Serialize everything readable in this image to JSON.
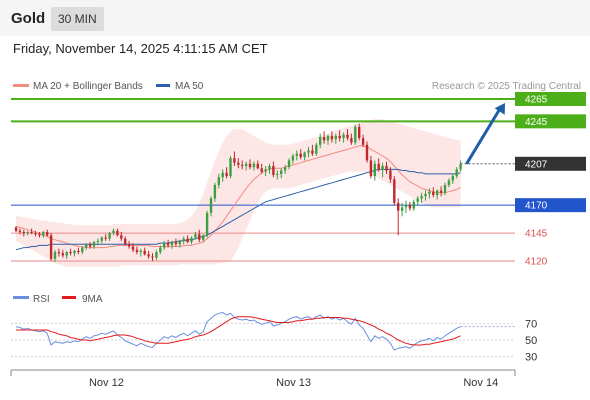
{
  "header": {
    "title": "Gold",
    "timeframe": "30 MIN"
  },
  "datetime": "Friday, November 14, 2025 4:11:15 AM CET",
  "legend": {
    "price": [
      {
        "label": "MA 20 + Bollinger Bands",
        "color": "#f28b82"
      },
      {
        "label": "MA 50",
        "color": "#2e5fa8"
      }
    ],
    "rsi": [
      {
        "label": "RSI",
        "color": "#6a8fe0"
      },
      {
        "label": "9MA",
        "color": "#e31a1c"
      }
    ]
  },
  "credit": "Research © 2025 Trading Central",
  "colors": {
    "up": "#3aa040",
    "down": "#c0282d",
    "resistance": "#4caf1a",
    "pivot": "#2255cc",
    "support": "#d9534f",
    "current": "#333333",
    "arrow": "#1f5fa8"
  },
  "chart_data": {
    "type": "candlestick",
    "instrument": "Gold",
    "interval": "30 MIN",
    "ylim": [
      4103,
      4282
    ],
    "x_tick_labels": [
      {
        "index": 16,
        "label": "Nov 12"
      },
      {
        "index": 64,
        "label": "Nov 13"
      },
      {
        "index": 112,
        "label": "Nov 14"
      }
    ],
    "candles": [
      [
        4150,
        4151,
        4146,
        4147
      ],
      [
        4147,
        4149,
        4144,
        4146
      ],
      [
        4146,
        4148,
        4142,
        4145
      ],
      [
        4145,
        4147,
        4143,
        4146
      ],
      [
        4146,
        4149,
        4144,
        4145
      ],
      [
        4145,
        4147,
        4142,
        4144
      ],
      [
        4144,
        4146,
        4141,
        4143
      ],
      [
        4143,
        4147,
        4141,
        4146
      ],
      [
        4146,
        4148,
        4142,
        4143
      ],
      [
        4143,
        4145,
        4120,
        4122
      ],
      [
        4122,
        4130,
        4119,
        4128
      ],
      [
        4128,
        4131,
        4124,
        4127
      ],
      [
        4127,
        4130,
        4123,
        4125
      ],
      [
        4125,
        4129,
        4122,
        4128
      ],
      [
        4128,
        4131,
        4125,
        4127
      ],
      [
        4127,
        4130,
        4124,
        4129
      ],
      [
        4129,
        4132,
        4126,
        4128
      ],
      [
        4128,
        4133,
        4126,
        4132
      ],
      [
        4132,
        4136,
        4130,
        4135
      ],
      [
        4135,
        4137,
        4131,
        4133
      ],
      [
        4133,
        4138,
        4131,
        4137
      ],
      [
        4137,
        4140,
        4134,
        4138
      ],
      [
        4138,
        4142,
        4136,
        4141
      ],
      [
        4141,
        4144,
        4138,
        4140
      ],
      [
        4140,
        4146,
        4138,
        4145
      ],
      [
        4145,
        4149,
        4143,
        4147
      ],
      [
        4147,
        4149,
        4142,
        4143
      ],
      [
        4143,
        4146,
        4138,
        4140
      ],
      [
        4140,
        4142,
        4134,
        4135
      ],
      [
        4135,
        4138,
        4131,
        4133
      ],
      [
        4133,
        4136,
        4128,
        4130
      ],
      [
        4130,
        4133,
        4126,
        4128
      ],
      [
        4128,
        4131,
        4124,
        4129
      ],
      [
        4129,
        4132,
        4125,
        4126
      ],
      [
        4126,
        4129,
        4122,
        4124
      ],
      [
        4124,
        4127,
        4120,
        4123
      ],
      [
        4123,
        4130,
        4121,
        4128
      ],
      [
        4128,
        4134,
        4126,
        4132
      ],
      [
        4132,
        4138,
        4130,
        4136
      ],
      [
        4136,
        4139,
        4132,
        4134
      ],
      [
        4134,
        4138,
        4131,
        4137
      ],
      [
        4137,
        4140,
        4133,
        4135
      ],
      [
        4135,
        4139,
        4132,
        4138
      ],
      [
        4138,
        4142,
        4135,
        4140
      ],
      [
        4140,
        4143,
        4136,
        4137
      ],
      [
        4137,
        4142,
        4135,
        4141
      ],
      [
        4141,
        4146,
        4139,
        4144
      ],
      [
        4144,
        4148,
        4137,
        4139
      ],
      [
        4139,
        4144,
        4137,
        4143
      ],
      [
        4143,
        4165,
        4141,
        4163
      ],
      [
        4163,
        4178,
        4160,
        4176
      ],
      [
        4176,
        4190,
        4173,
        4188
      ],
      [
        4188,
        4198,
        4185,
        4195
      ],
      [
        4195,
        4202,
        4191,
        4199
      ],
      [
        4199,
        4204,
        4194,
        4196
      ],
      [
        4196,
        4214,
        4194,
        4212
      ],
      [
        4212,
        4218,
        4205,
        4208
      ],
      [
        4208,
        4212,
        4203,
        4206
      ],
      [
        4206,
        4210,
        4202,
        4205
      ],
      [
        4205,
        4209,
        4201,
        4207
      ],
      [
        4207,
        4211,
        4202,
        4204
      ],
      [
        4204,
        4209,
        4201,
        4207
      ],
      [
        4207,
        4210,
        4202,
        4203
      ],
      [
        4203,
        4207,
        4198,
        4200
      ],
      [
        4200,
        4205,
        4196,
        4202
      ],
      [
        4202,
        4207,
        4198,
        4205
      ],
      [
        4205,
        4209,
        4195,
        4197
      ],
      [
        4197,
        4201,
        4193,
        4198
      ],
      [
        4198,
        4203,
        4194,
        4201
      ],
      [
        4201,
        4206,
        4198,
        4204
      ],
      [
        4204,
        4212,
        4202,
        4210
      ],
      [
        4210,
        4216,
        4207,
        4214
      ],
      [
        4214,
        4219,
        4210,
        4216
      ],
      [
        4216,
        4220,
        4211,
        4213
      ],
      [
        4213,
        4218,
        4210,
        4217
      ],
      [
        4217,
        4222,
        4213,
        4219
      ],
      [
        4219,
        4224,
        4214,
        4216
      ],
      [
        4216,
        4226,
        4214,
        4224
      ],
      [
        4224,
        4234,
        4221,
        4231
      ],
      [
        4231,
        4236,
        4225,
        4228
      ],
      [
        4228,
        4233,
        4224,
        4232
      ],
      [
        4232,
        4236,
        4226,
        4229
      ],
      [
        4229,
        4234,
        4225,
        4232
      ],
      [
        4232,
        4237,
        4227,
        4230
      ],
      [
        4230,
        4235,
        4226,
        4233
      ],
      [
        4233,
        4238,
        4228,
        4230
      ],
      [
        4230,
        4234,
        4224,
        4226
      ],
      [
        4226,
        4242,
        4224,
        4240
      ],
      [
        4240,
        4243,
        4228,
        4230
      ],
      [
        4230,
        4233,
        4222,
        4224
      ],
      [
        4224,
        4227,
        4208,
        4210
      ],
      [
        4210,
        4214,
        4194,
        4196
      ],
      [
        4196,
        4210,
        4192,
        4207
      ],
      [
        4207,
        4212,
        4200,
        4202
      ],
      [
        4202,
        4208,
        4195,
        4205
      ],
      [
        4205,
        4209,
        4198,
        4201
      ],
      [
        4201,
        4204,
        4190,
        4193
      ],
      [
        4193,
        4196,
        4170,
        4172
      ],
      [
        4172,
        4176,
        4143,
        4165
      ],
      [
        4165,
        4172,
        4160,
        4168
      ],
      [
        4168,
        4174,
        4163,
        4170
      ],
      [
        4170,
        4173,
        4165,
        4167
      ],
      [
        4167,
        4175,
        4165,
        4173
      ],
      [
        4173,
        4178,
        4170,
        4176
      ],
      [
        4176,
        4181,
        4172,
        4178
      ],
      [
        4178,
        4183,
        4174,
        4180
      ],
      [
        4180,
        4185,
        4176,
        4182
      ],
      [
        4182,
        4186,
        4177,
        4179
      ],
      [
        4179,
        4184,
        4175,
        4183
      ],
      [
        4183,
        4187,
        4178,
        4181
      ],
      [
        4181,
        4190,
        4179,
        4188
      ],
      [
        4188,
        4194,
        4186,
        4192
      ],
      [
        4192,
        4198,
        4189,
        4196
      ],
      [
        4196,
        4204,
        4194,
        4202
      ],
      [
        4202,
        4210,
        4200,
        4207
      ]
    ],
    "ma20": [
      4151,
      4150,
      4149,
      4148,
      4147,
      4146,
      4144,
      4143,
      4142,
      4140,
      4139,
      4138,
      4137,
      4136,
      4135,
      4134,
      4133,
      4133,
      4132,
      4132,
      4132,
      4132,
      4132,
      4132,
      4133,
      4133,
      4134,
      4134,
      4134,
      4134,
      4134,
      4134,
      4134,
      4134,
      4134,
      4133,
      4133,
      4133,
      4133,
      4133,
      4133,
      4133,
      4133,
      4134,
      4134,
      4134,
      4135,
      4136,
      4137,
      4140,
      4143,
      4147,
      4151,
      4155,
      4160,
      4165,
      4170,
      4175,
      4180,
      4185,
      4189,
      4193,
      4196,
      4199,
      4201,
      4202,
      4203,
      4203,
      4203,
      4204,
      4205,
      4206,
      4207,
      4208,
      4209,
      4210,
      4211,
      4212,
      4213,
      4214,
      4215,
      4216,
      4217,
      4218,
      4219,
      4220,
      4221,
      4222,
      4223,
      4223,
      4222,
      4220,
      4218,
      4216,
      4214,
      4212,
      4209,
      4205,
      4201,
      4197,
      4194,
      4191,
      4189,
      4187,
      4185,
      4184,
      4183,
      4182,
      4181,
      4181,
      4181,
      4182,
      4183,
      4184,
      4186
    ],
    "bb_upper": [
      4160,
      4160,
      4159,
      4159,
      4158,
      4157,
      4157,
      4156,
      4156,
      4155,
      4155,
      4154,
      4154,
      4153,
      4153,
      4152,
      4152,
      4152,
      4152,
      4152,
      4152,
      4152,
      4152,
      4152,
      4152,
      4153,
      4153,
      4153,
      4153,
      4153,
      4153,
      4153,
      4153,
      4153,
      4153,
      4153,
      4153,
      4153,
      4153,
      4153,
      4153,
      4153,
      4154,
      4155,
      4157,
      4160,
      4165,
      4172,
      4180,
      4190,
      4200,
      4210,
      4218,
      4226,
      4232,
      4236,
      4238,
      4238,
      4238,
      4236,
      4234,
      4232,
      4230,
      4228,
      4226,
      4225,
      4224,
      4224,
      4224,
      4224,
      4224,
      4225,
      4226,
      4227,
      4228,
      4229,
      4230,
      4231,
      4232,
      4233,
      4234,
      4236,
      4237,
      4238,
      4239,
      4240,
      4241,
      4242,
      4243,
      4244,
      4245,
      4246,
      4247,
      4247,
      4247,
      4246,
      4245,
      4244,
      4243,
      4242,
      4241,
      4240,
      4239,
      4238,
      4237,
      4236,
      4235,
      4234,
      4233,
      4232,
      4231,
      4230,
      4229,
      4228,
      4228
    ],
    "bb_lower": [
      4138,
      4136,
      4134,
      4132,
      4130,
      4128,
      4126,
      4124,
      4122,
      4120,
      4118,
      4117,
      4116,
      4115,
      4115,
      4115,
      4115,
      4115,
      4115,
      4115,
      4115,
      4115,
      4115,
      4115,
      4115,
      4115,
      4115,
      4116,
      4116,
      4116,
      4116,
      4116,
      4116,
      4116,
      4116,
      4116,
      4116,
      4116,
      4116,
      4116,
      4116,
      4116,
      4117,
      4117,
      4117,
      4117,
      4117,
      4117,
      4117,
      4117,
      4117,
      4117,
      4118,
      4118,
      4119,
      4120,
      4125,
      4132,
      4140,
      4148,
      4156,
      4164,
      4172,
      4178,
      4182,
      4184,
      4185,
      4185,
      4185,
      4185,
      4185,
      4186,
      4187,
      4188,
      4189,
      4190,
      4191,
      4192,
      4193,
      4194,
      4195,
      4196,
      4197,
      4198,
      4199,
      4200,
      4200,
      4200,
      4200,
      4200,
      4199,
      4198,
      4196,
      4194,
      4192,
      4190,
      4188,
      4186,
      4184,
      4182,
      4180,
      4178,
      4176,
      4174,
      4172,
      4170,
      4169,
      4168,
      4168,
      4168,
      4168,
      4168,
      4168,
      4168,
      4168
    ],
    "ma50": [
      4130,
      4131,
      4132,
      4132,
      4133,
      4133,
      4134,
      4134,
      4134,
      4135,
      4135,
      4135,
      4135,
      4135,
      4135,
      4135,
      4135,
      4135,
      4135,
      4135,
      4135,
      4135,
      4135,
      4135,
      4135,
      4135,
      4135,
      4135,
      4135,
      4135,
      4135,
      4135,
      4135,
      4135,
      4135,
      4135,
      4135,
      4136,
      4136,
      4136,
      4137,
      4137,
      4138,
      4138,
      4139,
      4139,
      4140,
      4141,
      4142,
      4143,
      4145,
      4147,
      4149,
      4151,
      4153,
      4155,
      4157,
      4159,
      4161,
      4163,
      4165,
      4167,
      4169,
      4171,
      4173,
      4174,
      4175,
      4176,
      4177,
      4178,
      4179,
      4180,
      4181,
      4182,
      4183,
      4184,
      4185,
      4186,
      4187,
      4188,
      4189,
      4190,
      4191,
      4192,
      4193,
      4194,
      4195,
      4196,
      4197,
      4198,
      4199,
      4200,
      4201,
      4202,
      4202,
      4202,
      4202,
      4202,
      4202,
      4201,
      4201,
      4200,
      4200,
      4199,
      4199,
      4198,
      4198,
      4198,
      4198,
      4198,
      4198,
      4198,
      4198,
      4198,
      4199
    ],
    "levels": [
      {
        "value": 4265,
        "label": "4265",
        "kind": "resistance"
      },
      {
        "value": 4245,
        "label": "4245",
        "kind": "resistance"
      },
      {
        "value": 4207,
        "label": "4207",
        "kind": "current"
      },
      {
        "value": 4170,
        "label": "4170",
        "kind": "pivot"
      },
      {
        "value": 4145,
        "label": "4145",
        "kind": "support"
      },
      {
        "value": 4120,
        "label": "4120",
        "kind": "support"
      }
    ],
    "arrow": {
      "direction": "up",
      "from_value": 4207,
      "to_value": 4265
    },
    "rsi": {
      "ylim": [
        20,
        80
      ],
      "y_tick_labels": [
        "70",
        "50",
        "30"
      ],
      "y_ticks": [
        70,
        50,
        30
      ],
      "rsi": [
        66,
        65,
        63,
        64,
        62,
        61,
        60,
        61,
        58,
        44,
        48,
        47,
        46,
        48,
        47,
        49,
        48,
        51,
        54,
        52,
        55,
        56,
        58,
        57,
        59,
        61,
        56,
        53,
        49,
        47,
        45,
        43,
        46,
        44,
        42,
        41,
        46,
        50,
        54,
        52,
        55,
        53,
        56,
        58,
        55,
        58,
        61,
        57,
        60,
        72,
        76,
        80,
        82,
        83,
        80,
        82,
        77,
        75,
        74,
        75,
        73,
        74,
        71,
        69,
        70,
        72,
        67,
        68,
        70,
        72,
        75,
        77,
        78,
        75,
        77,
        78,
        75,
        78,
        80,
        76,
        78,
        75,
        77,
        74,
        76,
        72,
        69,
        76,
        68,
        64,
        56,
        48,
        55,
        52,
        54,
        51,
        46,
        38,
        40,
        41,
        42,
        40,
        44,
        47,
        49,
        50,
        52,
        49,
        53,
        51,
        55,
        58,
        61,
        64,
        66
      ],
      "ma9": [
        62,
        62,
        62,
        62,
        62,
        62,
        62,
        62,
        62,
        60,
        59,
        57,
        56,
        55,
        53,
        52,
        51,
        50,
        50,
        49,
        50,
        51,
        52,
        53,
        54,
        55,
        56,
        56,
        56,
        55,
        54,
        52,
        51,
        49,
        48,
        47,
        46,
        46,
        46,
        46,
        47,
        48,
        49,
        50,
        51,
        52,
        54,
        55,
        56,
        58,
        60,
        63,
        66,
        69,
        72,
        75,
        77,
        78,
        78,
        78,
        78,
        77,
        76,
        75,
        74,
        73,
        72,
        71,
        71,
        71,
        71,
        72,
        73,
        73,
        74,
        75,
        75,
        76,
        76,
        77,
        77,
        77,
        77,
        77,
        76,
        76,
        75,
        74,
        73,
        72,
        70,
        68,
        66,
        63,
        61,
        58,
        56,
        53,
        50,
        48,
        46,
        45,
        44,
        44,
        44,
        45,
        45,
        46,
        47,
        48,
        49,
        50,
        51,
        53,
        55
      ]
    }
  }
}
